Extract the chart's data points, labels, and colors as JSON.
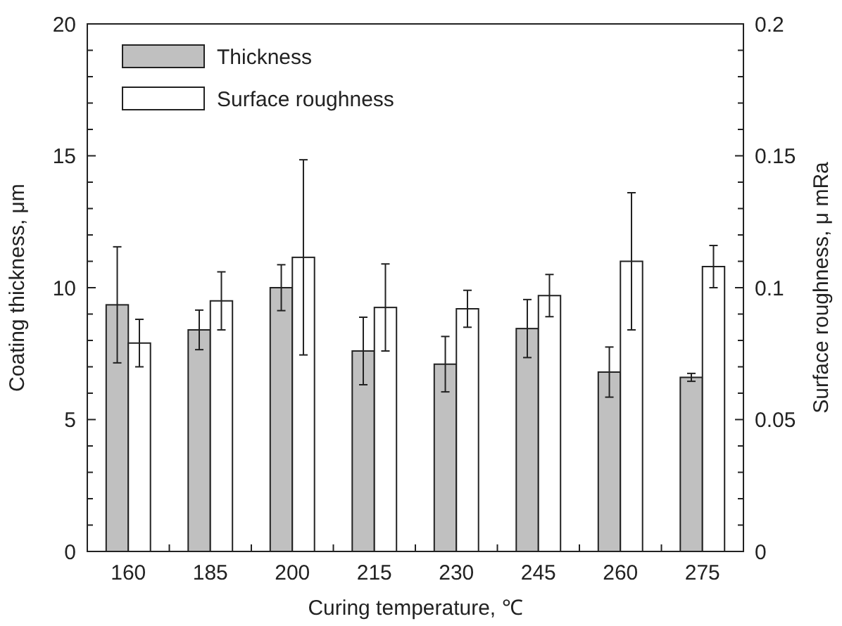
{
  "chart_data": {
    "type": "bar",
    "xlabel": "Curing temperature, ℃",
    "ylabel": "Coating thickness, μm",
    "y2label": "Surface roughness, μ mRa",
    "categories": [
      "160",
      "185",
      "200",
      "215",
      "230",
      "245",
      "260",
      "275"
    ],
    "series": [
      {
        "name": "Thickness",
        "color": "#c0c0c0",
        "values": [
          9.35,
          8.4,
          10.0,
          7.6,
          7.1,
          8.45,
          6.8,
          6.6
        ],
        "errors": [
          2.2,
          0.75,
          0.87,
          1.28,
          1.05,
          1.1,
          0.95,
          0.15
        ]
      },
      {
        "name": "Surface roughness",
        "color": "#ffffff",
        "axis": "y2",
        "values": [
          0.079,
          0.095,
          0.1115,
          0.0925,
          0.092,
          0.097,
          0.11,
          0.108
        ],
        "errors": [
          0.009,
          0.011,
          0.037,
          0.0165,
          0.007,
          0.008,
          0.026,
          0.008
        ]
      }
    ],
    "ylim": [
      0,
      20
    ],
    "yticks": [
      0,
      {
        "value": 1,
        "label": null
      },
      {
        "value": 2,
        "label": null
      },
      {
        "value": 3,
        "label": null
      },
      {
        "value": 4,
        "label": null
      },
      5,
      {
        "value": 6,
        "label": null
      },
      {
        "value": 7,
        "label": null
      },
      {
        "value": 8,
        "label": null
      },
      {
        "value": 9,
        "label": null
      },
      10,
      {
        "value": 11,
        "label": null
      },
      {
        "value": 12,
        "label": null
      },
      {
        "value": 13,
        "label": null
      },
      {
        "value": 14,
        "label": null
      },
      15,
      {
        "value": 16,
        "label": null
      },
      {
        "value": 17,
        "label": null
      },
      {
        "value": 18,
        "label": null
      },
      {
        "value": 19,
        "label": null
      },
      20
    ],
    "y2lim": [
      0,
      0.2
    ],
    "y2ticks": [
      0,
      {
        "value": 0.01,
        "label": null
      },
      {
        "value": 0.02,
        "label": null
      },
      {
        "value": 0.03,
        "label": null
      },
      {
        "value": 0.04,
        "label": null
      },
      0.05,
      {
        "value": 0.06,
        "label": null
      },
      {
        "value": 0.07,
        "label": null
      },
      {
        "value": 0.08,
        "label": null
      },
      {
        "value": 0.09,
        "label": null
      },
      0.1,
      {
        "value": 0.11,
        "label": null
      },
      {
        "value": 0.12,
        "label": null
      },
      {
        "value": 0.13,
        "label": null
      },
      {
        "value": 0.14,
        "label": null
      },
      0.15,
      {
        "value": 0.16,
        "label": null
      },
      {
        "value": 0.17,
        "label": null
      },
      {
        "value": 0.18,
        "label": null
      },
      {
        "value": 0.19,
        "label": null
      },
      0.2
    ],
    "grid": false,
    "legend": "top left"
  }
}
